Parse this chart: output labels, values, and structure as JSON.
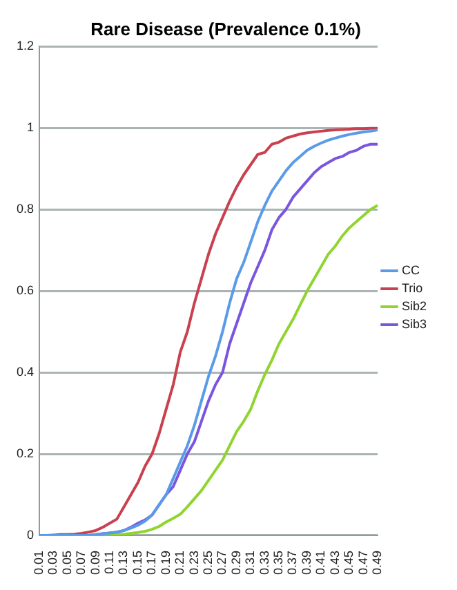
{
  "chart_data": {
    "type": "line",
    "title": "Rare Disease (Prevalence 0.1%)",
    "categories": [
      "0.01",
      null,
      "0.03",
      null,
      "0.05",
      null,
      "0.07",
      null,
      "0.09",
      null,
      "0.11",
      null,
      "0.13",
      null,
      "0.15",
      null,
      "0.17",
      null,
      "0.19",
      null,
      "0.21",
      null,
      "0.23",
      null,
      "0.25",
      null,
      "0.27",
      null,
      "0.29",
      null,
      "0.31",
      null,
      "0.33",
      null,
      "0.35",
      null,
      "0.37",
      null,
      "0.39",
      null,
      "0.41",
      null,
      "0.43",
      null,
      "0.45",
      null,
      "0.47",
      null,
      "0.49"
    ],
    "series": [
      {
        "name": "CC",
        "color": "#5a9be8",
        "values": [
          0,
          0,
          0,
          0,
          0,
          0,
          0,
          0,
          0.002,
          0.004,
          0.006,
          0.008,
          0.012,
          0.018,
          0.025,
          0.035,
          0.05,
          0.075,
          0.1,
          0.14,
          0.18,
          0.22,
          0.27,
          0.33,
          0.39,
          0.44,
          0.5,
          0.57,
          0.63,
          0.67,
          0.72,
          0.77,
          0.81,
          0.845,
          0.87,
          0.895,
          0.915,
          0.93,
          0.945,
          0.955,
          0.963,
          0.97,
          0.975,
          0.98,
          0.984,
          0.987,
          0.99,
          0.992,
          0.995
        ]
      },
      {
        "name": "Trio",
        "color": "#c9404f",
        "values": [
          0,
          0,
          0.001,
          0.002,
          0.002,
          0.003,
          0.005,
          0.008,
          0.012,
          0.02,
          0.03,
          0.04,
          0.07,
          0.1,
          0.13,
          0.17,
          0.2,
          0.25,
          0.31,
          0.37,
          0.45,
          0.5,
          0.57,
          0.63,
          0.69,
          0.74,
          0.78,
          0.82,
          0.855,
          0.885,
          0.91,
          0.935,
          0.94,
          0.96,
          0.965,
          0.975,
          0.98,
          0.985,
          0.988,
          0.99,
          0.992,
          0.994,
          0.995,
          0.996,
          0.997,
          0.998,
          0.998,
          0.999,
          0.999
        ]
      },
      {
        "name": "Sib2",
        "color": "#8fd42f",
        "values": [
          null,
          null,
          null,
          null,
          null,
          null,
          null,
          null,
          0,
          0,
          0.001,
          0.002,
          0.003,
          0.005,
          0.007,
          0.01,
          0.015,
          0.022,
          0.033,
          0.042,
          0.052,
          0.07,
          0.09,
          0.11,
          0.135,
          0.16,
          0.185,
          0.22,
          0.255,
          0.28,
          0.31,
          0.355,
          0.395,
          0.43,
          0.47,
          0.5,
          0.53,
          0.565,
          0.6,
          0.63,
          0.66,
          0.69,
          0.71,
          0.735,
          0.755,
          0.77,
          0.785,
          0.8,
          0.81
        ]
      },
      {
        "name": "Sib3",
        "color": "#7a56e0",
        "values": [
          null,
          null,
          null,
          null,
          null,
          null,
          0,
          0,
          0.002,
          0.004,
          0.006,
          0.008,
          0.012,
          0.02,
          0.03,
          0.038,
          0.05,
          0.075,
          0.1,
          0.12,
          0.16,
          0.2,
          0.23,
          0.28,
          0.33,
          0.37,
          0.4,
          0.47,
          0.52,
          0.57,
          0.62,
          0.66,
          0.7,
          0.75,
          0.78,
          0.8,
          0.83,
          0.85,
          0.87,
          0.89,
          0.905,
          0.915,
          0.925,
          0.93,
          0.94,
          0.945,
          0.955,
          0.96,
          0.96
        ]
      }
    ],
    "ylim": [
      0,
      1.2
    ],
    "yticks": [
      0,
      0.2,
      0.4,
      0.6,
      0.8,
      1,
      1.2
    ],
    "grid": "y",
    "legend": "right",
    "marker": "none",
    "line_style": "solid"
  }
}
